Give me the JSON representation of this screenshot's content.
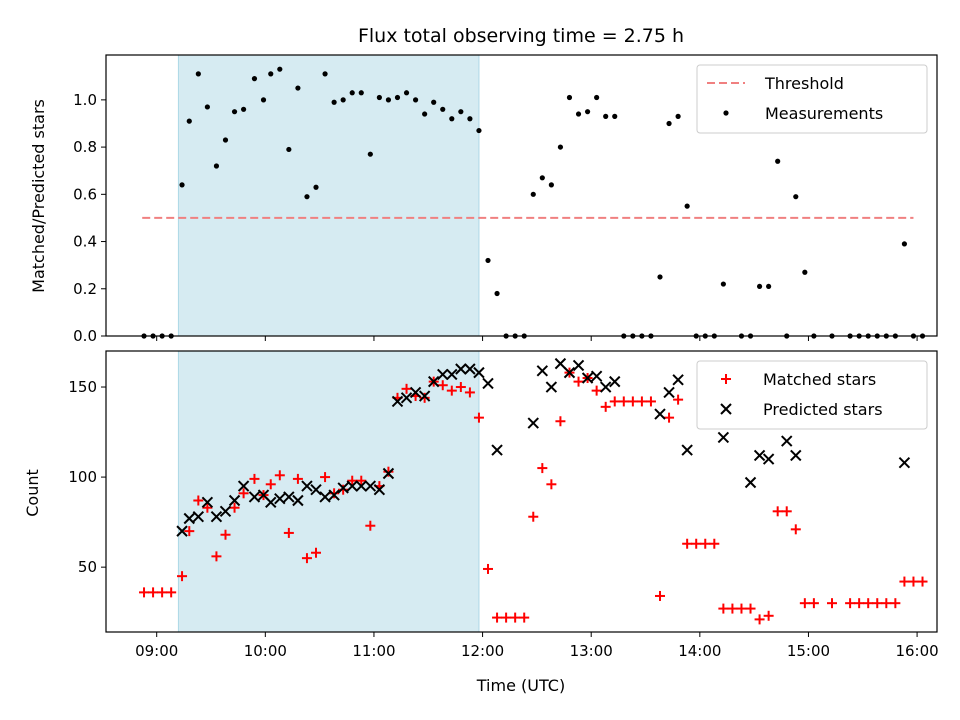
{
  "chart_data": [
    {
      "type": "scatter",
      "title": "Flux total observing time = 2.75 h",
      "ylabel": "Matched/Predicted stars",
      "xlabel": "",
      "xlim": [
        "08:32",
        "16:11"
      ],
      "ylim": [
        0,
        1.19
      ],
      "yticks": [
        0.0,
        0.2,
        0.4,
        0.6,
        0.8,
        1.0
      ],
      "ytick_labels": [
        "0.0",
        "0.2",
        "0.4",
        "0.6",
        "0.8",
        "1.0"
      ],
      "highlight_span": [
        "09:12",
        "11:58"
      ],
      "legend": {
        "position": "top-right",
        "entries": [
          "Threshold",
          "Measurements"
        ]
      },
      "series": [
        {
          "name": "Threshold",
          "type": "line",
          "style": "dashed",
          "color": "#f08080",
          "x": [
            "08:52",
            "15:58"
          ],
          "y": [
            0.5,
            0.5
          ]
        },
        {
          "name": "Measurements",
          "type": "scatter",
          "color": "#000000",
          "points": [
            [
              "08:53",
              0
            ],
            [
              "08:58",
              0
            ],
            [
              "09:03",
              0
            ],
            [
              "09:08",
              0
            ],
            [
              "09:14",
              0.64
            ],
            [
              "09:18",
              0.91
            ],
            [
              "09:23",
              1.11
            ],
            [
              "09:28",
              0.97
            ],
            [
              "09:33",
              0.72
            ],
            [
              "09:38",
              0.83
            ],
            [
              "09:43",
              0.95
            ],
            [
              "09:48",
              0.96
            ],
            [
              "09:54",
              1.09
            ],
            [
              "09:59",
              1.0
            ],
            [
              "10:03",
              1.11
            ],
            [
              "10:08",
              1.13
            ],
            [
              "10:13",
              0.79
            ],
            [
              "10:18",
              1.05
            ],
            [
              "10:23",
              0.59
            ],
            [
              "10:28",
              0.63
            ],
            [
              "10:33",
              1.11
            ],
            [
              "10:38",
              0.99
            ],
            [
              "10:43",
              1.0
            ],
            [
              "10:48",
              1.03
            ],
            [
              "10:53",
              1.03
            ],
            [
              "10:58",
              0.77
            ],
            [
              "11:03",
              1.01
            ],
            [
              "11:08",
              1.0
            ],
            [
              "11:13",
              1.01
            ],
            [
              "11:18",
              1.03
            ],
            [
              "11:23",
              1.0
            ],
            [
              "11:28",
              0.94
            ],
            [
              "11:33",
              0.99
            ],
            [
              "11:38",
              0.96
            ],
            [
              "11:43",
              0.92
            ],
            [
              "11:48",
              0.95
            ],
            [
              "11:53",
              0.92
            ],
            [
              "11:58",
              0.87
            ],
            [
              "12:03",
              0.32
            ],
            [
              "12:08",
              0.18
            ],
            [
              "12:13",
              0
            ],
            [
              "12:18",
              0
            ],
            [
              "12:23",
              0
            ],
            [
              "12:28",
              0.6
            ],
            [
              "12:33",
              0.67
            ],
            [
              "12:38",
              0.64
            ],
            [
              "12:43",
              0.8
            ],
            [
              "12:48",
              1.01
            ],
            [
              "12:53",
              0.94
            ],
            [
              "12:58",
              0.95
            ],
            [
              "13:03",
              1.01
            ],
            [
              "13:08",
              0.93
            ],
            [
              "13:13",
              0.93
            ],
            [
              "13:18",
              0
            ],
            [
              "13:23",
              0
            ],
            [
              "13:28",
              0
            ],
            [
              "13:33",
              0
            ],
            [
              "13:38",
              0.25
            ],
            [
              "13:43",
              0.9
            ],
            [
              "13:48",
              0.93
            ],
            [
              "13:53",
              0.55
            ],
            [
              "13:58",
              0
            ],
            [
              "14:03",
              0
            ],
            [
              "14:08",
              0
            ],
            [
              "14:13",
              0.22
            ],
            [
              "14:23",
              0
            ],
            [
              "14:28",
              0
            ],
            [
              "14:33",
              0.21
            ],
            [
              "14:38",
              0.21
            ],
            [
              "14:43",
              0.74
            ],
            [
              "14:48",
              0
            ],
            [
              "14:53",
              0.59
            ],
            [
              "14:58",
              0.27
            ],
            [
              "15:03",
              0
            ],
            [
              "15:13",
              0
            ],
            [
              "15:23",
              0
            ],
            [
              "15:28",
              0
            ],
            [
              "15:33",
              0
            ],
            [
              "15:38",
              0
            ],
            [
              "15:43",
              0
            ],
            [
              "15:48",
              0
            ],
            [
              "15:53",
              0.39
            ],
            [
              "15:58",
              0
            ],
            [
              "16:03",
              0
            ]
          ]
        }
      ]
    },
    {
      "type": "scatter",
      "title": "",
      "ylabel": "Count",
      "xlabel": "Time (UTC)",
      "xlim": [
        "08:32",
        "16:11"
      ],
      "ylim": [
        14,
        170
      ],
      "yticks": [
        50,
        100,
        150
      ],
      "ytick_labels": [
        "50",
        "100",
        "150"
      ],
      "xticks": [
        "09:00",
        "10:00",
        "11:00",
        "12:00",
        "13:00",
        "14:00",
        "15:00",
        "16:00"
      ],
      "xtick_labels": [
        "09:00",
        "10:00",
        "11:00",
        "12:00",
        "13:00",
        "14:00",
        "15:00",
        "16:00"
      ],
      "highlight_span": [
        "09:12",
        "11:58"
      ],
      "legend": {
        "position": "top-right",
        "entries": [
          "Matched stars",
          "Predicted stars"
        ]
      },
      "series": [
        {
          "name": "Matched stars",
          "marker": "plus",
          "color": "#ff0000",
          "points": [
            [
              "08:53",
              36
            ],
            [
              "08:58",
              36
            ],
            [
              "09:03",
              36
            ],
            [
              "09:08",
              36
            ],
            [
              "09:14",
              45
            ],
            [
              "09:18",
              70
            ],
            [
              "09:23",
              87
            ],
            [
              "09:28",
              83
            ],
            [
              "09:33",
              56
            ],
            [
              "09:38",
              68
            ],
            [
              "09:43",
              83
            ],
            [
              "09:48",
              91
            ],
            [
              "09:54",
              99
            ],
            [
              "09:59",
              90
            ],
            [
              "10:03",
              96
            ],
            [
              "10:08",
              101
            ],
            [
              "10:13",
              69
            ],
            [
              "10:18",
              99
            ],
            [
              "10:23",
              55
            ],
            [
              "10:28",
              58
            ],
            [
              "10:33",
              100
            ],
            [
              "10:38",
              91
            ],
            [
              "10:43",
              93
            ],
            [
              "10:48",
              98
            ],
            [
              "10:53",
              98
            ],
            [
              "10:58",
              73
            ],
            [
              "11:03",
              95
            ],
            [
              "11:08",
              103
            ],
            [
              "11:13",
              144
            ],
            [
              "11:18",
              149
            ],
            [
              "11:23",
              145
            ],
            [
              "11:28",
              144
            ],
            [
              "11:33",
              153
            ],
            [
              "11:38",
              151
            ],
            [
              "11:43",
              148
            ],
            [
              "11:48",
              150
            ],
            [
              "11:53",
              147
            ],
            [
              "11:58",
              133
            ],
            [
              "12:03",
              49
            ],
            [
              "12:08",
              22
            ],
            [
              "12:13",
              22
            ],
            [
              "12:18",
              22
            ],
            [
              "12:23",
              22
            ],
            [
              "12:28",
              78
            ],
            [
              "12:33",
              105
            ],
            [
              "12:38",
              96
            ],
            [
              "12:43",
              131
            ],
            [
              "12:48",
              158
            ],
            [
              "12:53",
              153
            ],
            [
              "12:58",
              155
            ],
            [
              "13:03",
              148
            ],
            [
              "13:08",
              139
            ],
            [
              "13:13",
              142
            ],
            [
              "13:18",
              142
            ],
            [
              "13:23",
              142
            ],
            [
              "13:28",
              142
            ],
            [
              "13:33",
              142
            ],
            [
              "13:38",
              34
            ],
            [
              "13:43",
              133
            ],
            [
              "13:48",
              143
            ],
            [
              "13:53",
              63
            ],
            [
              "13:58",
              63
            ],
            [
              "14:03",
              63
            ],
            [
              "14:08",
              63
            ],
            [
              "14:13",
              27
            ],
            [
              "14:18",
              27
            ],
            [
              "14:23",
              27
            ],
            [
              "14:28",
              27
            ],
            [
              "14:33",
              21
            ],
            [
              "14:38",
              23
            ],
            [
              "14:43",
              81
            ],
            [
              "14:48",
              81
            ],
            [
              "14:53",
              71
            ],
            [
              "14:58",
              30
            ],
            [
              "15:03",
              30
            ],
            [
              "15:13",
              30
            ],
            [
              "15:23",
              30
            ],
            [
              "15:28",
              30
            ],
            [
              "15:33",
              30
            ],
            [
              "15:38",
              30
            ],
            [
              "15:43",
              30
            ],
            [
              "15:48",
              30
            ],
            [
              "15:53",
              42
            ],
            [
              "15:58",
              42
            ],
            [
              "16:03",
              42
            ]
          ]
        },
        {
          "name": "Predicted stars",
          "marker": "x",
          "color": "#000000",
          "points": [
            [
              "09:14",
              70
            ],
            [
              "09:18",
              77
            ],
            [
              "09:23",
              78
            ],
            [
              "09:28",
              86
            ],
            [
              "09:33",
              78
            ],
            [
              "09:38",
              81
            ],
            [
              "09:43",
              87
            ],
            [
              "09:48",
              95
            ],
            [
              "09:54",
              89
            ],
            [
              "09:59",
              90
            ],
            [
              "10:03",
              86
            ],
            [
              "10:08",
              88
            ],
            [
              "10:13",
              89
            ],
            [
              "10:18",
              87
            ],
            [
              "10:23",
              95
            ],
            [
              "10:28",
              93
            ],
            [
              "10:33",
              89
            ],
            [
              "10:38",
              90
            ],
            [
              "10:43",
              94
            ],
            [
              "10:48",
              95
            ],
            [
              "10:53",
              95
            ],
            [
              "10:58",
              95
            ],
            [
              "11:03",
              93
            ],
            [
              "11:08",
              102
            ],
            [
              "11:13",
              142
            ],
            [
              "11:18",
              144
            ],
            [
              "11:23",
              147
            ],
            [
              "11:28",
              145
            ],
            [
              "11:33",
              153
            ],
            [
              "11:38",
              157
            ],
            [
              "11:43",
              157
            ],
            [
              "11:48",
              160
            ],
            [
              "11:53",
              160
            ],
            [
              "11:58",
              158
            ],
            [
              "12:03",
              152
            ],
            [
              "12:08",
              115
            ],
            [
              "12:28",
              130
            ],
            [
              "12:33",
              159
            ],
            [
              "12:38",
              150
            ],
            [
              "12:43",
              163
            ],
            [
              "12:48",
              158
            ],
            [
              "12:53",
              162
            ],
            [
              "12:58",
              155
            ],
            [
              "13:03",
              156
            ],
            [
              "13:08",
              150
            ],
            [
              "13:13",
              153
            ],
            [
              "13:38",
              135
            ],
            [
              "13:43",
              147
            ],
            [
              "13:48",
              154
            ],
            [
              "13:53",
              115
            ],
            [
              "14:13",
              122
            ],
            [
              "14:28",
              97
            ],
            [
              "14:33",
              112
            ],
            [
              "14:38",
              110
            ],
            [
              "14:48",
              120
            ],
            [
              "14:53",
              112
            ],
            [
              "15:53",
              108
            ]
          ]
        }
      ]
    }
  ]
}
